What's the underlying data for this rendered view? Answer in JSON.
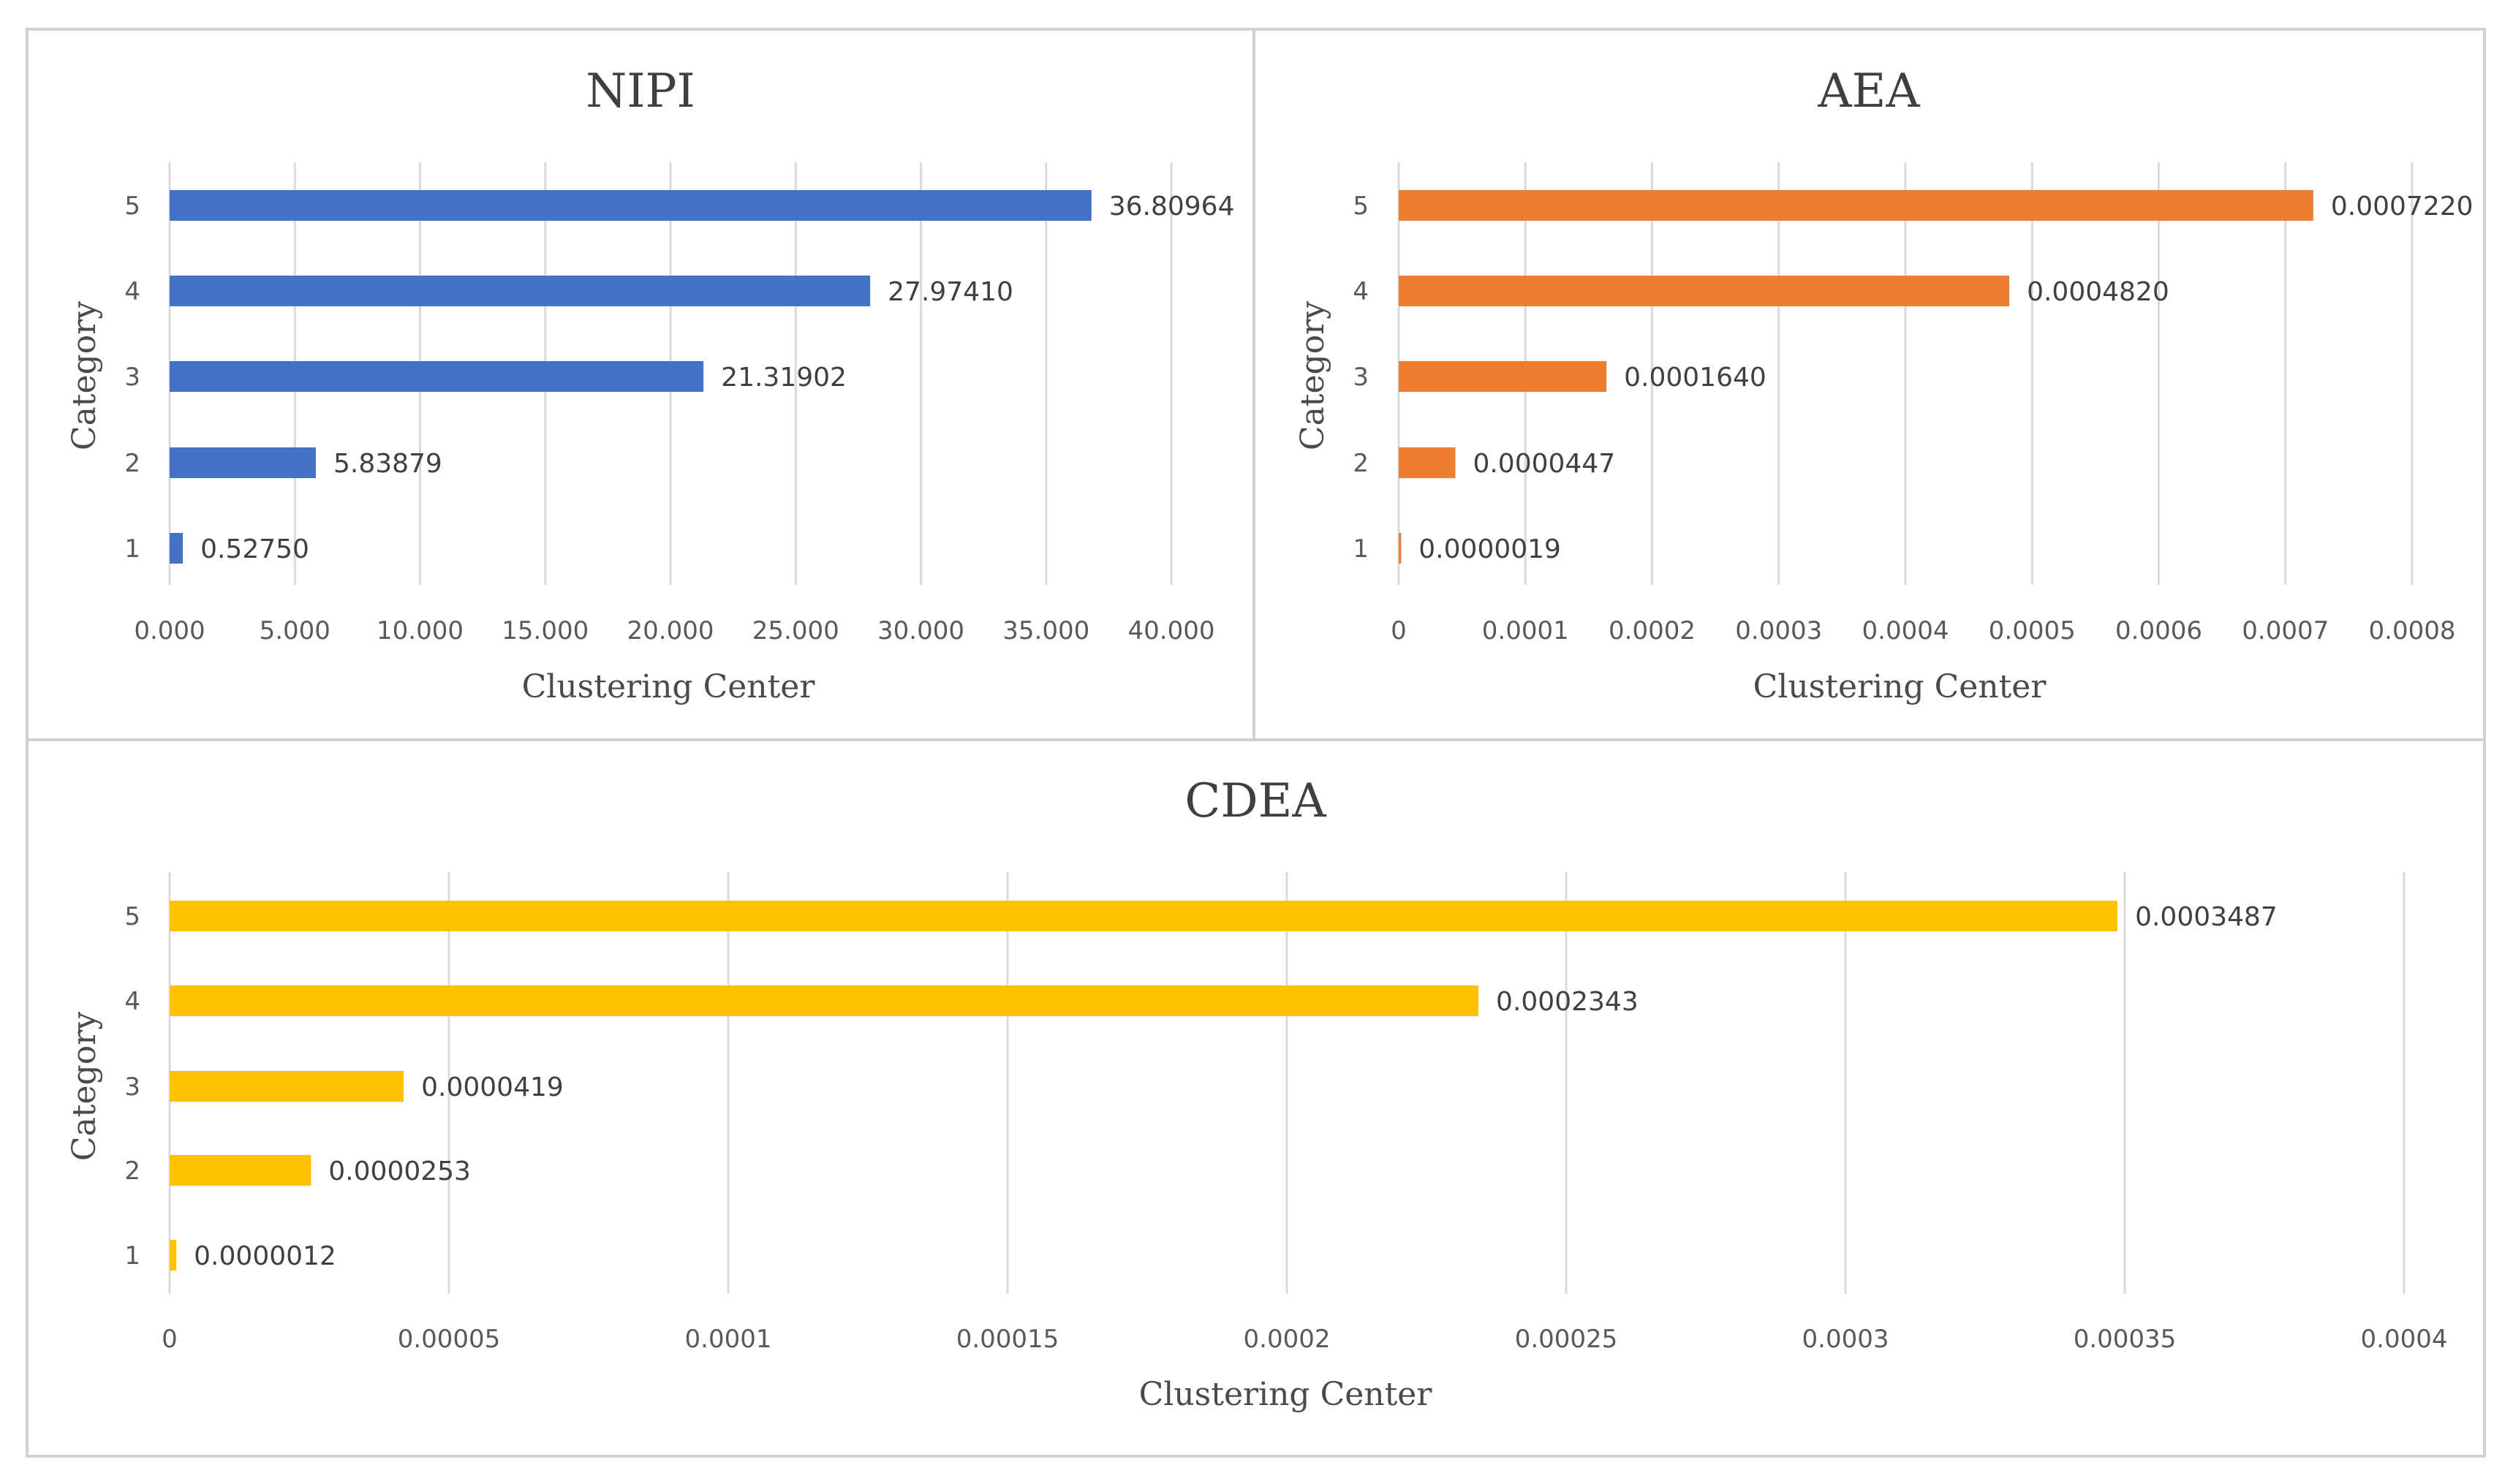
{
  "chart_data": [
    {
      "id": "nipi",
      "type": "bar",
      "orientation": "horizontal",
      "title": "NIPI",
      "xlabel": "Clustering Center",
      "ylabel": "Category",
      "categories": [
        "1",
        "2",
        "3",
        "4",
        "5"
      ],
      "values": [
        0.5275,
        5.83879,
        21.31902,
        27.9741,
        36.80964
      ],
      "data_labels": [
        "0.52750",
        "5.83879",
        "21.31902",
        "27.97410",
        "36.80964"
      ],
      "xlim": [
        0,
        40
      ],
      "xticks": [
        0,
        5,
        10,
        15,
        20,
        25,
        30,
        35,
        40
      ],
      "xtick_labels": [
        "0.000",
        "5.000",
        "10.000",
        "15.000",
        "20.000",
        "25.000",
        "30.000",
        "35.000",
        "40.000"
      ],
      "color": "#4472C4",
      "grid": true
    },
    {
      "id": "aea",
      "type": "bar",
      "orientation": "horizontal",
      "title": "AEA",
      "xlabel": "Clustering Center",
      "ylabel": "Category",
      "categories": [
        "1",
        "2",
        "3",
        "4",
        "5"
      ],
      "values": [
        1.9e-06,
        4.47e-05,
        0.000164,
        0.000482,
        0.000722
      ],
      "data_labels": [
        "0.0000019",
        "0.0000447",
        "0.0001640",
        "0.0004820",
        "0.0007220"
      ],
      "xlim": [
        0,
        0.0008
      ],
      "xticks": [
        0,
        0.0001,
        0.0002,
        0.0003,
        0.0004,
        0.0005,
        0.0006,
        0.0007,
        0.0008
      ],
      "xtick_labels": [
        "0",
        "0.0001",
        "0.0002",
        "0.0003",
        "0.0004",
        "0.0005",
        "0.0006",
        "0.0007",
        "0.0008"
      ],
      "color": "#ED7D31",
      "grid": true
    },
    {
      "id": "cdea",
      "type": "bar",
      "orientation": "horizontal",
      "title": "CDEA",
      "xlabel": "Clustering Center",
      "ylabel": "Category",
      "categories": [
        "1",
        "2",
        "3",
        "4",
        "5"
      ],
      "values": [
        1.2e-06,
        2.53e-05,
        4.19e-05,
        0.0002343,
        0.0003487
      ],
      "data_labels": [
        "0.0000012",
        "0.0000253",
        "0.0000419",
        "0.0002343",
        "0.0003487"
      ],
      "xlim": [
        0,
        0.0004
      ],
      "xticks": [
        0,
        5e-05,
        0.0001,
        0.00015,
        0.0002,
        0.00025,
        0.0003,
        0.00035,
        0.0004
      ],
      "xtick_labels": [
        "0",
        "0.00005",
        "0.0001",
        "0.00015",
        "0.0002",
        "0.00025",
        "0.0003",
        "0.00035",
        "0.0004"
      ],
      "color": "#FFC000",
      "grid": true
    }
  ]
}
